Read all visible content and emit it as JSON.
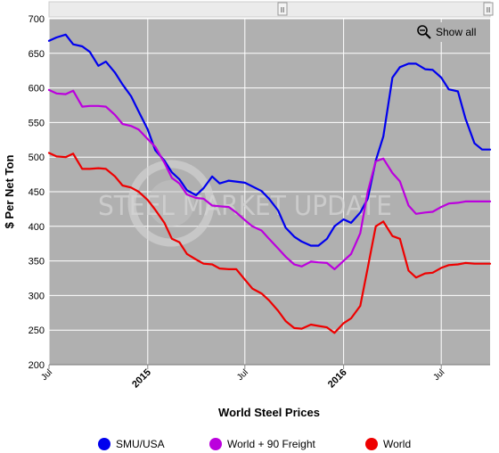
{
  "chart_data": {
    "type": "line",
    "title": "",
    "xlabel": "World Steel Prices",
    "ylabel": "$ Per Net Ton",
    "ylim": [
      200,
      700
    ],
    "yticks": [
      200,
      250,
      300,
      350,
      400,
      450,
      500,
      550,
      600,
      650,
      700
    ],
    "xlim": [
      "2014-07-01",
      "2016-09-30"
    ],
    "xticks": [
      {
        "date": "2014-07-01",
        "label": "Jul",
        "bold": false
      },
      {
        "date": "2015-01-01",
        "label": "2015",
        "bold": true
      },
      {
        "date": "2015-07-01",
        "label": "Jul",
        "bold": false
      },
      {
        "date": "2016-01-01",
        "label": "2016",
        "bold": true
      },
      {
        "date": "2016-07-01",
        "label": "Jul",
        "bold": false
      }
    ],
    "grid": true,
    "legend": "bottom",
    "series": [
      {
        "name": "SMU/USA",
        "color": "#0000ee",
        "points": [
          [
            "2014-07-01",
            668
          ],
          [
            "2014-07-15",
            673
          ],
          [
            "2014-08-01",
            677
          ],
          [
            "2014-08-15",
            663
          ],
          [
            "2014-09-01",
            660
          ],
          [
            "2014-09-15",
            652
          ],
          [
            "2014-10-01",
            632
          ],
          [
            "2014-10-15",
            638
          ],
          [
            "2014-11-01",
            622
          ],
          [
            "2014-11-15",
            605
          ],
          [
            "2014-12-01",
            588
          ],
          [
            "2014-12-15",
            566
          ],
          [
            "2015-01-01",
            540
          ],
          [
            "2015-01-15",
            510
          ],
          [
            "2015-02-01",
            495
          ],
          [
            "2015-02-15",
            478
          ],
          [
            "2015-03-01",
            468
          ],
          [
            "2015-03-15",
            452
          ],
          [
            "2015-04-01",
            445
          ],
          [
            "2015-04-15",
            455
          ],
          [
            "2015-05-01",
            472
          ],
          [
            "2015-05-15",
            462
          ],
          [
            "2015-06-01",
            466
          ],
          [
            "2015-07-01",
            463
          ],
          [
            "2015-08-01",
            451
          ],
          [
            "2015-08-15",
            440
          ],
          [
            "2015-09-01",
            423
          ],
          [
            "2015-09-15",
            398
          ],
          [
            "2015-10-01",
            385
          ],
          [
            "2015-10-15",
            378
          ],
          [
            "2015-11-01",
            372
          ],
          [
            "2015-11-15",
            372
          ],
          [
            "2015-12-01",
            382
          ],
          [
            "2015-12-15",
            400
          ],
          [
            "2016-01-01",
            410
          ],
          [
            "2016-01-15",
            405
          ],
          [
            "2016-02-01",
            420
          ],
          [
            "2016-02-15",
            440
          ],
          [
            "2016-03-01",
            495
          ],
          [
            "2016-03-15",
            530
          ],
          [
            "2016-04-01",
            615
          ],
          [
            "2016-04-15",
            630
          ],
          [
            "2016-05-01",
            635
          ],
          [
            "2016-05-15",
            635
          ],
          [
            "2016-06-01",
            627
          ],
          [
            "2016-06-15",
            626
          ],
          [
            "2016-07-01",
            615
          ],
          [
            "2016-07-15",
            598
          ],
          [
            "2016-08-01",
            595
          ],
          [
            "2016-08-15",
            556
          ],
          [
            "2016-09-01",
            520
          ],
          [
            "2016-09-15",
            511
          ],
          [
            "2016-09-30",
            511
          ]
        ]
      },
      {
        "name": "World + 90 Freight",
        "color": "#bb00dd",
        "points": [
          [
            "2014-07-01",
            597
          ],
          [
            "2014-07-15",
            592
          ],
          [
            "2014-08-01",
            591
          ],
          [
            "2014-08-15",
            596
          ],
          [
            "2014-09-01",
            573
          ],
          [
            "2014-09-15",
            574
          ],
          [
            "2014-10-01",
            574
          ],
          [
            "2014-10-15",
            573
          ],
          [
            "2014-11-01",
            561
          ],
          [
            "2014-11-15",
            548
          ],
          [
            "2014-12-01",
            545
          ],
          [
            "2014-12-15",
            540
          ],
          [
            "2015-01-01",
            526
          ],
          [
            "2015-01-15",
            515
          ],
          [
            "2015-02-01",
            492
          ],
          [
            "2015-02-15",
            470
          ],
          [
            "2015-03-01",
            462
          ],
          [
            "2015-03-15",
            446
          ],
          [
            "2015-04-01",
            441
          ],
          [
            "2015-04-15",
            440
          ],
          [
            "2015-05-01",
            430
          ],
          [
            "2015-05-15",
            429
          ],
          [
            "2015-06-01",
            428
          ],
          [
            "2015-06-15",
            420
          ],
          [
            "2015-07-01",
            409
          ],
          [
            "2015-07-15",
            400
          ],
          [
            "2015-08-01",
            394
          ],
          [
            "2015-08-15",
            382
          ],
          [
            "2015-09-01",
            368
          ],
          [
            "2015-09-15",
            356
          ],
          [
            "2015-10-01",
            345
          ],
          [
            "2015-10-15",
            342
          ],
          [
            "2015-11-01",
            349
          ],
          [
            "2015-11-15",
            348
          ],
          [
            "2015-12-01",
            347
          ],
          [
            "2015-12-15",
            338
          ],
          [
            "2016-01-01",
            350
          ],
          [
            "2016-01-15",
            360
          ],
          [
            "2016-02-01",
            390
          ],
          [
            "2016-02-15",
            450
          ],
          [
            "2016-03-01",
            494
          ],
          [
            "2016-03-15",
            498
          ],
          [
            "2016-04-01",
            477
          ],
          [
            "2016-04-15",
            465
          ],
          [
            "2016-05-01",
            430
          ],
          [
            "2016-05-15",
            418
          ],
          [
            "2016-06-01",
            420
          ],
          [
            "2016-06-15",
            421
          ],
          [
            "2016-07-01",
            428
          ],
          [
            "2016-07-15",
            433
          ],
          [
            "2016-08-01",
            434
          ],
          [
            "2016-08-15",
            436
          ],
          [
            "2016-09-01",
            436
          ],
          [
            "2016-09-30",
            436
          ]
        ]
      },
      {
        "name": "World",
        "color": "#ee0000",
        "points": [
          [
            "2014-07-01",
            506
          ],
          [
            "2014-07-15",
            501
          ],
          [
            "2014-08-01",
            500
          ],
          [
            "2014-08-15",
            505
          ],
          [
            "2014-09-01",
            483
          ],
          [
            "2014-09-15",
            483
          ],
          [
            "2014-10-01",
            484
          ],
          [
            "2014-10-15",
            483
          ],
          [
            "2014-11-01",
            472
          ],
          [
            "2014-11-15",
            459
          ],
          [
            "2014-12-01",
            456
          ],
          [
            "2014-12-15",
            450
          ],
          [
            "2015-01-01",
            438
          ],
          [
            "2015-01-15",
            424
          ],
          [
            "2015-02-01",
            405
          ],
          [
            "2015-02-15",
            382
          ],
          [
            "2015-03-01",
            377
          ],
          [
            "2015-03-15",
            360
          ],
          [
            "2015-04-01",
            352
          ],
          [
            "2015-04-15",
            346
          ],
          [
            "2015-05-01",
            345
          ],
          [
            "2015-05-15",
            339
          ],
          [
            "2015-06-01",
            338
          ],
          [
            "2015-06-15",
            338
          ],
          [
            "2015-07-01",
            323
          ],
          [
            "2015-07-15",
            310
          ],
          [
            "2015-08-01",
            303
          ],
          [
            "2015-08-15",
            293
          ],
          [
            "2015-09-01",
            278
          ],
          [
            "2015-09-15",
            263
          ],
          [
            "2015-10-01",
            253
          ],
          [
            "2015-10-15",
            252
          ],
          [
            "2015-11-01",
            258
          ],
          [
            "2015-11-15",
            256
          ],
          [
            "2015-12-01",
            254
          ],
          [
            "2015-12-15",
            246
          ],
          [
            "2016-01-01",
            260
          ],
          [
            "2016-01-15",
            267
          ],
          [
            "2016-02-01",
            285
          ],
          [
            "2016-02-15",
            340
          ],
          [
            "2016-03-01",
            400
          ],
          [
            "2016-03-15",
            407
          ],
          [
            "2016-04-01",
            386
          ],
          [
            "2016-04-15",
            382
          ],
          [
            "2016-05-01",
            336
          ],
          [
            "2016-05-15",
            326
          ],
          [
            "2016-06-01",
            332
          ],
          [
            "2016-06-15",
            333
          ],
          [
            "2016-07-01",
            340
          ],
          [
            "2016-07-15",
            344
          ],
          [
            "2016-08-01",
            345
          ],
          [
            "2016-08-15",
            347
          ],
          [
            "2016-09-01",
            346
          ],
          [
            "2016-09-30",
            346
          ]
        ]
      }
    ]
  },
  "ui": {
    "show_all_label": "Show all",
    "navigator_left_handle": "II",
    "navigator_right_handle": "II",
    "watermark": "STEEL MARKET UPDATE"
  },
  "colors": {
    "plot_background": "#b0b0b0",
    "grid": "#ffffff",
    "navigator_background": "#ebebeb"
  }
}
